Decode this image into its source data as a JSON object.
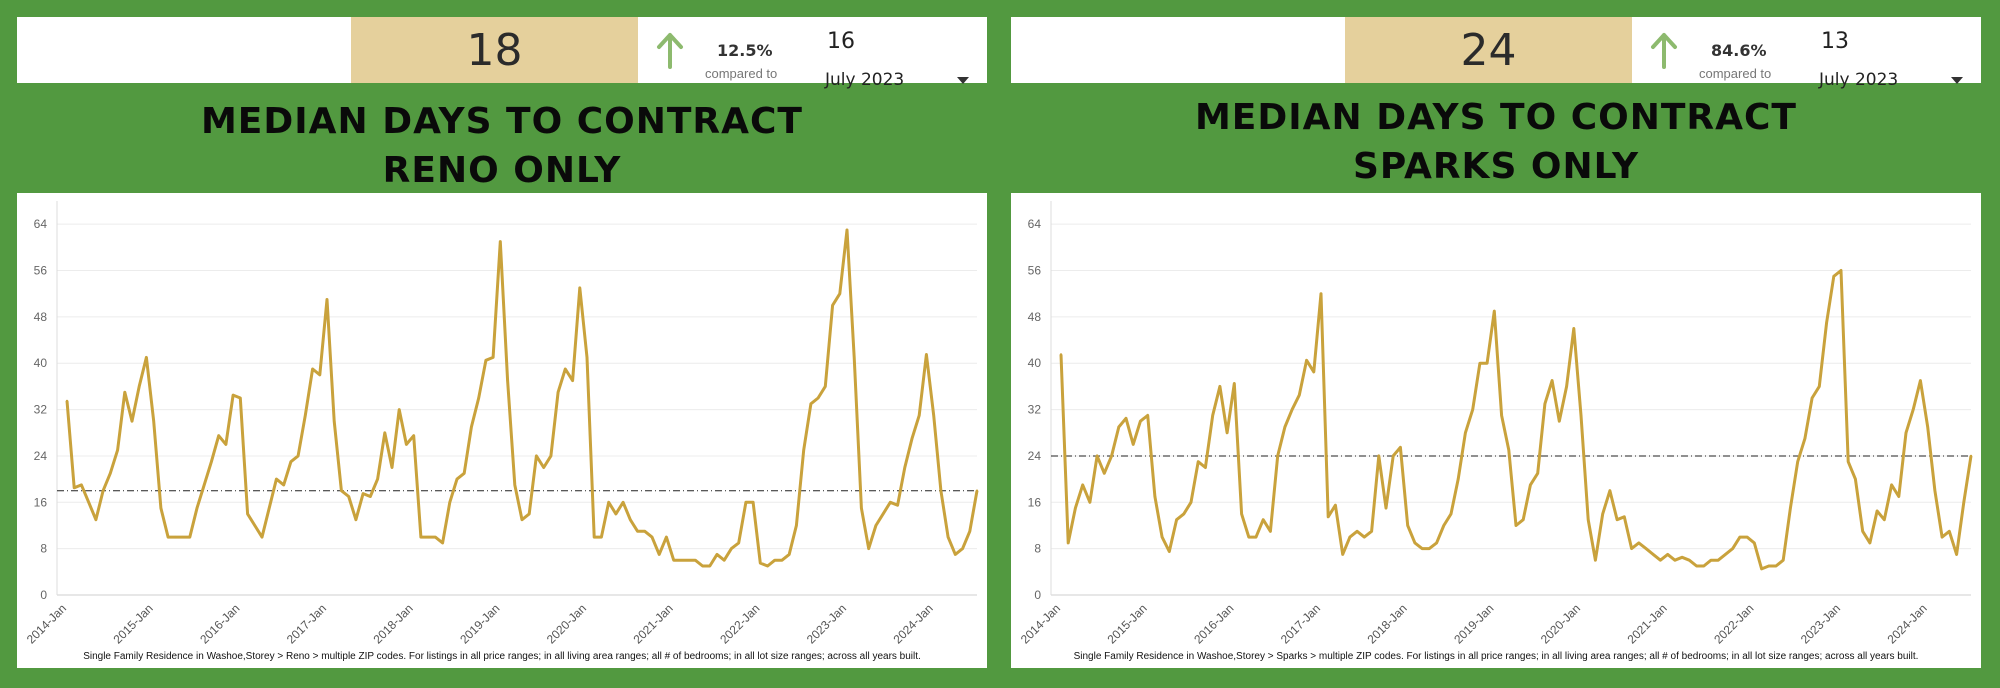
{
  "colors": {
    "background": "#529940",
    "kpi_value_bg": "#e5d09c",
    "arrow": "#8dba6e",
    "line": "#c9a23c",
    "reference_line": "#222222",
    "grid": "#ececec"
  },
  "panels": [
    {
      "kpi": {
        "value": "18",
        "arrow_icon": "arrow-up-icon",
        "change_pct": "12.5%",
        "compared_label": "compared to",
        "previous_value": "16",
        "date_selector": "July 2023",
        "dropdown_icon": "caret-down-icon"
      },
      "title_line1": "MEDIAN DAYS TO CONTRACT",
      "title_line2": "RENO ONLY",
      "footnote": "Single Family Residence in Washoe,Storey > Reno > multiple ZIP codes. For listings in all price ranges; in all living area ranges; all # of bedrooms; in all lot size ranges; across all years built."
    },
    {
      "kpi": {
        "value": "24",
        "arrow_icon": "arrow-up-icon",
        "change_pct": "84.6%",
        "compared_label": "compared to",
        "previous_value": "13",
        "date_selector": "July 2023",
        "dropdown_icon": "caret-down-icon"
      },
      "title_line1": "MEDIAN DAYS TO CONTRACT",
      "title_line2": "SPARKS ONLY",
      "footnote": "Single Family Residence in Washoe,Storey > Sparks > multiple ZIP codes. For listings in all price ranges; in all living area ranges; all # of bedrooms; in all lot size ranges; across all years built."
    }
  ],
  "chart_data": [
    {
      "type": "line",
      "title": "",
      "xlabel": "",
      "ylabel": "",
      "ylim": [
        0,
        68
      ],
      "yticks": [
        0,
        8,
        16,
        24,
        32,
        40,
        48,
        56,
        64
      ],
      "x_tick_labels": [
        "2014-Jan",
        "2015-Jan",
        "2016-Jan",
        "2017-Jan",
        "2018-Jan",
        "2019-Jan",
        "2020-Jan",
        "2021-Jan",
        "2022-Jan",
        "2023-Jan",
        "2024-Jan"
      ],
      "x_start": "2014-Jan",
      "x_end": "2024-Jul",
      "grid": true,
      "reference_line": 18,
      "series": [
        {
          "values": [
            33.5,
            18.5,
            19,
            16,
            13,
            18,
            21,
            25,
            35,
            30,
            36,
            41,
            30,
            15,
            10,
            10,
            10,
            10,
            15,
            19,
            23,
            27.5,
            26,
            34.5,
            34,
            14,
            12,
            10,
            15,
            20,
            19,
            23,
            24,
            31,
            39,
            38,
            51,
            30,
            18,
            17,
            13,
            17.5,
            17,
            20,
            28,
            22,
            32,
            26,
            27.5,
            10,
            10,
            10,
            9,
            16,
            20,
            21,
            29,
            34,
            40.5,
            41,
            61,
            37,
            19,
            13,
            14,
            24,
            22,
            24,
            35,
            39,
            37,
            53,
            41,
            10,
            10,
            16,
            14,
            16,
            13,
            11,
            11,
            10,
            7,
            10,
            6,
            6,
            6,
            6,
            5,
            5,
            7,
            6,
            8,
            9,
            16,
            16,
            5.5,
            5,
            6,
            6,
            7,
            12,
            25,
            33,
            34,
            36,
            50,
            52,
            63,
            41,
            15,
            8,
            12,
            14,
            16,
            15.5,
            22,
            27,
            31,
            41.5,
            31,
            18,
            10,
            7,
            8,
            11,
            18
          ]
        }
      ]
    },
    {
      "type": "line",
      "title": "",
      "xlabel": "",
      "ylabel": "",
      "ylim": [
        0,
        68
      ],
      "yticks": [
        0,
        8,
        16,
        24,
        32,
        40,
        48,
        56,
        64
      ],
      "x_tick_labels": [
        "2014-Jan",
        "2015-Jan",
        "2016-Jan",
        "2017-Jan",
        "2018-Jan",
        "2019-Jan",
        "2020-Jan",
        "2021-Jan",
        "2022-Jan",
        "2023-Jan",
        "2024-Jan"
      ],
      "x_start": "2014-Jan",
      "x_end": "2024-Jul",
      "grid": true,
      "reference_line": 24,
      "series": [
        {
          "values": [
            41.5,
            9,
            15,
            19,
            16,
            24,
            21,
            24,
            29,
            30.5,
            26,
            30,
            31,
            17,
            10,
            7.5,
            13,
            14,
            16,
            23,
            22,
            31,
            36,
            28,
            36.5,
            14,
            10,
            10,
            13,
            11,
            24,
            29,
            32,
            34.5,
            40.5,
            38.5,
            52,
            13.5,
            15.5,
            7,
            10,
            11,
            10,
            11,
            24,
            15,
            24,
            25.5,
            12,
            9,
            8,
            8,
            9,
            12,
            14,
            20,
            28,
            32,
            40,
            40,
            49,
            31,
            25,
            12,
            13,
            19,
            21,
            33,
            37,
            30,
            36,
            46,
            31,
            13,
            6,
            14,
            18,
            13,
            13.5,
            8,
            9,
            8,
            7,
            6,
            7,
            6,
            6.5,
            6,
            5,
            5,
            6,
            6,
            7,
            8,
            10,
            10,
            9,
            4.5,
            5,
            5,
            6,
            15,
            23,
            27,
            34,
            36,
            47,
            55,
            56,
            23,
            20,
            11,
            9,
            14.5,
            13,
            19,
            17,
            28,
            32,
            37,
            29,
            18,
            10,
            11,
            7,
            16,
            24
          ]
        }
      ]
    }
  ]
}
